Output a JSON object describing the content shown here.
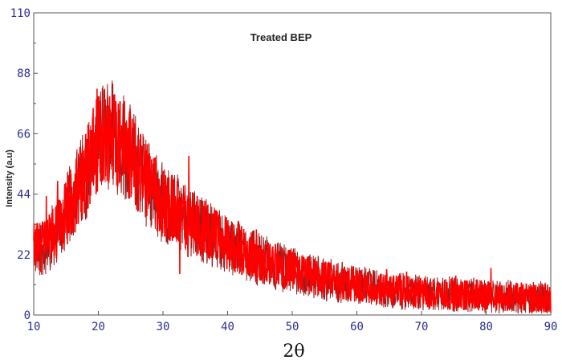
{
  "chart_data": {
    "type": "line",
    "title": "Treated BEP",
    "xlabel": "2θ",
    "ylabel": "Intensity (a.u)",
    "xlim": [
      10,
      90
    ],
    "ylim": [
      0,
      110
    ],
    "xticks": [
      "10",
      "20",
      "30",
      "40",
      "50",
      "60",
      "70",
      "80",
      "90"
    ],
    "yticks": [
      "0",
      "22",
      "44",
      "66",
      "88",
      "110"
    ],
    "grid": false,
    "line_color": "#ff0000",
    "noise_color": "#9b1b1b",
    "axis_color": "#555555",
    "tick_color": "#2b2f8f",
    "envelope": {
      "x": [
        10,
        12,
        14,
        16,
        18,
        20,
        21,
        22,
        24,
        26,
        28,
        30,
        35,
        40,
        45,
        50,
        55,
        60,
        65,
        70,
        75,
        80,
        85,
        90
      ],
      "y": [
        24,
        26,
        32,
        42,
        52,
        63,
        66,
        67,
        62,
        54,
        47,
        41,
        33,
        26,
        20,
        16,
        13,
        11,
        9,
        8,
        7.5,
        7,
        6.5,
        6
      ]
    }
  }
}
